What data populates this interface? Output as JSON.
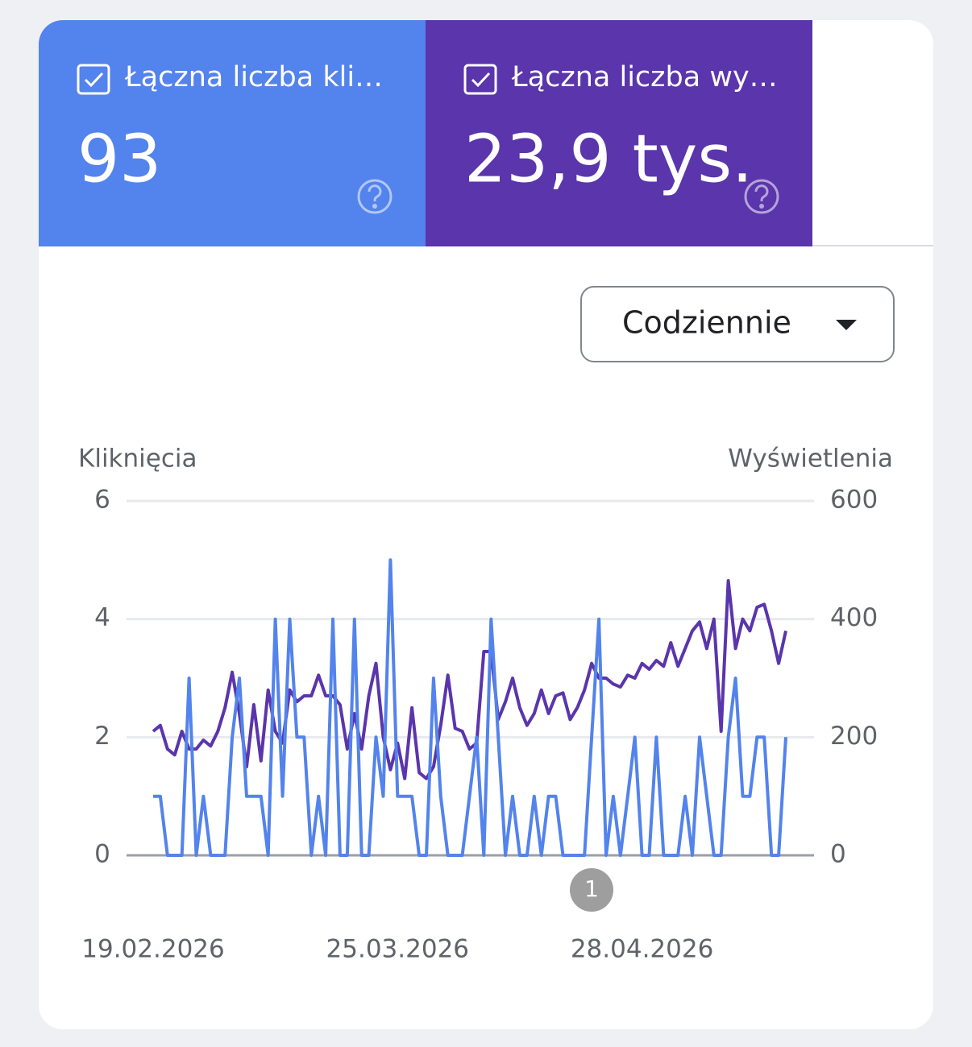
{
  "cards": [
    {
      "label": "Łączna liczba kli…",
      "value": "93",
      "color": "#5383ec"
    },
    {
      "label": "Łączna liczba wy…",
      "value": "23,9 tys.",
      "color": "#5a35ab"
    }
  ],
  "dropdown": "Codziennie",
  "chart_data": {
    "type": "line",
    "ylabel": "Kliknięcia",
    "y2label": "Wyświetlenia",
    "categories": [
      "19.02.2026",
      null,
      null,
      null,
      null,
      null,
      null,
      null,
      null,
      null,
      null,
      null,
      null,
      null,
      null,
      null,
      null,
      null,
      null,
      null,
      null,
      null,
      null,
      null,
      null,
      null,
      null,
      null,
      null,
      null,
      null,
      null,
      null,
      null,
      "25.03.2026",
      null,
      null,
      null,
      null,
      null,
      null,
      null,
      null,
      null,
      null,
      null,
      null,
      null,
      null,
      null,
      null,
      null,
      null,
      null,
      null,
      null,
      null,
      null,
      null,
      null,
      null,
      null,
      null,
      null,
      null,
      null,
      null,
      null,
      "28.04.2026",
      null,
      null,
      null,
      null,
      null,
      null,
      null,
      null,
      null,
      null,
      null,
      null,
      null,
      null,
      null,
      null,
      null,
      null,
      null,
      null
    ],
    "series": [
      {
        "color": "#5a35ab",
        "axis": "y2",
        "values": [
          210,
          220,
          180,
          170,
          210,
          180,
          180,
          195,
          185,
          210,
          250,
          310,
          240,
          150,
          255,
          160,
          280,
          210,
          190,
          280,
          260,
          270,
          270,
          305,
          270,
          270,
          255,
          180,
          240,
          180,
          270,
          325,
          200,
          145,
          190,
          130,
          250,
          140,
          130,
          150,
          220,
          305,
          215,
          210,
          180,
          190,
          345,
          345,
          230,
          260,
          300,
          250,
          220,
          240,
          280,
          240,
          270,
          275,
          230,
          250,
          280,
          325,
          300,
          300,
          290,
          285,
          305,
          300,
          325,
          315,
          330,
          320,
          360,
          320,
          350,
          380,
          395,
          350,
          400,
          210,
          465,
          350,
          400,
          380,
          420,
          425,
          380,
          325,
          380
        ]
      },
      {
        "color": "#5383ec",
        "values": [
          1,
          1,
          0,
          0,
          0,
          3,
          0,
          1,
          0,
          0,
          0,
          2,
          3,
          1,
          1,
          1,
          0,
          4,
          1,
          4,
          2,
          2,
          0,
          1,
          0,
          4,
          0,
          0,
          4,
          0,
          0,
          2,
          1,
          5,
          1,
          1,
          1,
          0,
          0,
          3,
          1,
          0,
          0,
          0,
          1,
          2,
          0,
          4,
          2,
          0,
          1,
          0,
          0,
          1,
          0,
          1,
          1,
          0,
          0,
          0,
          0,
          2,
          4,
          0,
          1,
          0,
          1,
          2,
          0,
          0,
          2,
          0,
          0,
          0,
          1,
          0,
          2,
          1,
          0,
          0,
          2,
          3,
          1,
          1,
          2,
          2,
          0,
          0,
          2
        ]
      }
    ],
    "ylim": [
      0,
      6
    ],
    "yticks": [
      0,
      2,
      4,
      6
    ],
    "y2lim": [
      0,
      600
    ],
    "y2ticks": [
      0,
      200,
      400,
      600
    ],
    "annotations": [
      {
        "text": "1"
      }
    ]
  }
}
